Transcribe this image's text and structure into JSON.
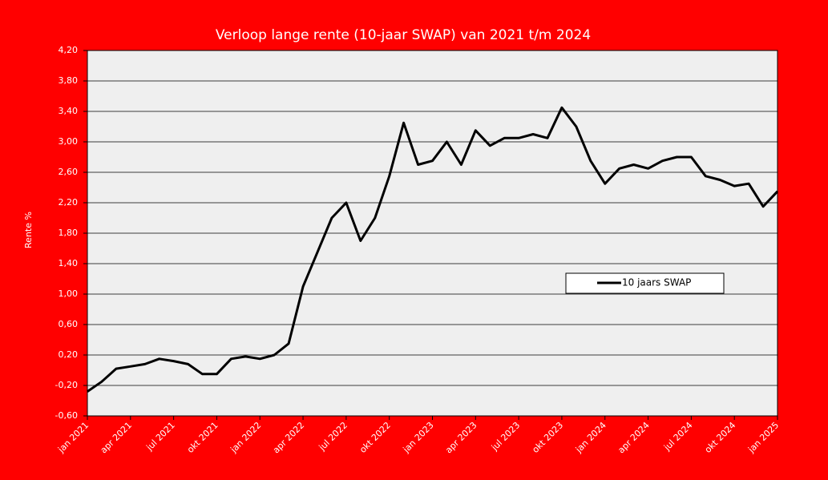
{
  "chart_data": {
    "type": "line",
    "title": "Verloop lange rente (10-jaar SWAP) van 2021 t/m 2024",
    "y_label": "Rente %",
    "categories": [
      "jan 2021",
      null,
      null,
      "apr 2021",
      null,
      null,
      "jul 2021",
      null,
      null,
      "okt 2021",
      null,
      null,
      "jan 2022",
      null,
      null,
      "apr 2022",
      null,
      null,
      "jul 2022",
      null,
      null,
      "okt 2022",
      null,
      null,
      "jan 2023",
      null,
      null,
      "apr 2023",
      null,
      null,
      "jul 2023",
      null,
      null,
      "okt 2023",
      null,
      null,
      "jan 2024",
      null,
      null,
      "apr 2024",
      null,
      null,
      "jul 2024",
      null,
      null,
      "okt 2024",
      null,
      null,
      "jan 2025"
    ],
    "series": [
      {
        "name": "10 jaars SWAP",
        "color": "#000000",
        "values": [
          -0.28,
          -0.15,
          0.02,
          0.05,
          0.08,
          0.15,
          0.12,
          0.08,
          -0.05,
          -0.05,
          0.15,
          0.18,
          0.15,
          0.2,
          0.35,
          1.1,
          1.55,
          2.0,
          2.2,
          1.7,
          2.0,
          2.55,
          3.25,
          2.7,
          2.75,
          3.0,
          2.7,
          3.15,
          2.95,
          3.05,
          3.05,
          3.1,
          3.05,
          3.45,
          3.2,
          2.75,
          2.45,
          2.65,
          2.7,
          2.65,
          2.75,
          2.8,
          2.8,
          2.55,
          2.5,
          2.42,
          2.45,
          2.15,
          2.35
        ]
      }
    ],
    "ylim": [
      -0.6,
      4.2
    ],
    "yticks": [
      {
        "value": -0.6,
        "label": "-0,60"
      },
      {
        "value": -0.2,
        "label": "-0,20"
      },
      {
        "value": 0.2,
        "label": "0,20"
      },
      {
        "value": 0.6,
        "label": "0,60"
      },
      {
        "value": 1.0,
        "label": "1,00"
      },
      {
        "value": 1.4,
        "label": "1,40"
      },
      {
        "value": 1.8,
        "label": "1,80"
      },
      {
        "value": 2.2,
        "label": "2,20"
      },
      {
        "value": 2.6,
        "label": "2,60"
      },
      {
        "value": 3.0,
        "label": "3,00"
      },
      {
        "value": 3.4,
        "label": "3,40"
      },
      {
        "value": 3.8,
        "label": "3,80"
      },
      {
        "value": 4.2,
        "label": "4,20"
      }
    ],
    "grid": true
  }
}
